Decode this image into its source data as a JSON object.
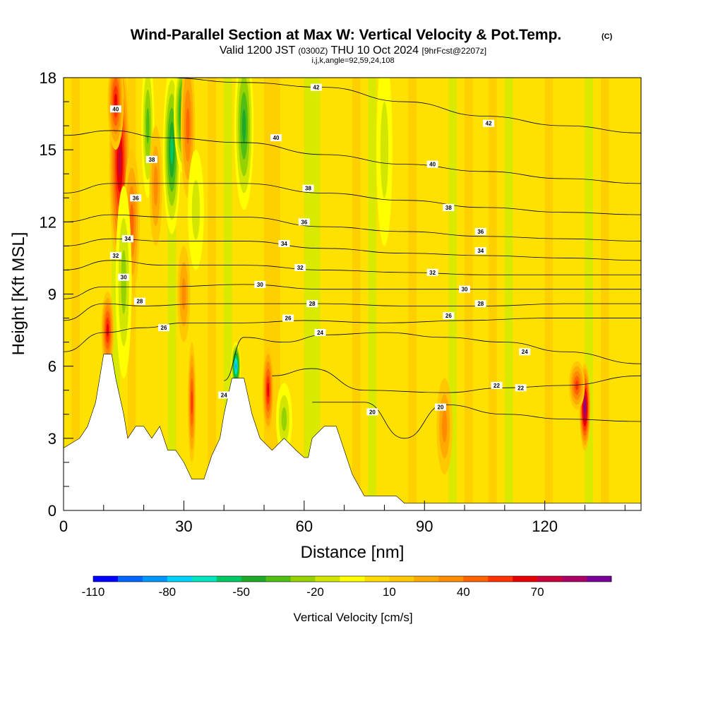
{
  "chart_data": {
    "type": "heatmap",
    "title": "Wind-Parallel Section at Max W: Vertical Velocity & Pot.Temp.",
    "title_mark": "(C)",
    "subtitle": {
      "main_a": "Valid 1200 JST",
      "utc": "(0300Z)",
      "main_b": "THU 10 Oct 2024",
      "fcst": "[9hrFcst@2207z]"
    },
    "index_line": "i,j,k,angle=92,59,24,108",
    "xlabel": "Distance [nm]",
    "ylabel": "Height [Kft MSL]",
    "xlim": [
      0,
      144
    ],
    "ylim": [
      0,
      18
    ],
    "x_ticks": [
      "0",
      "30",
      "60",
      "90",
      "120"
    ],
    "x_tick_values": [
      0,
      30,
      60,
      90,
      120
    ],
    "y_ticks": [
      "0",
      "3",
      "6",
      "9",
      "12",
      "15",
      "18"
    ],
    "y_tick_values": [
      0,
      3,
      6,
      9,
      12,
      15,
      18
    ],
    "grid": false,
    "colorbar": {
      "label": "Vertical Velocity [cm/s]",
      "range": [
        -110,
        100
      ],
      "step": 10,
      "tick_labels": [
        "-110",
        "-80",
        "-50",
        "-20",
        "10",
        "40",
        "70"
      ],
      "tick_values": [
        -110,
        -80,
        -50,
        -20,
        10,
        40,
        70
      ],
      "colors": [
        "#0000ff",
        "#0064ff",
        "#0096ff",
        "#00d2ff",
        "#00e6be",
        "#00c864",
        "#1eaa28",
        "#50be14",
        "#96d200",
        "#d2e600",
        "#ffff00",
        "#ffdc00",
        "#ffc800",
        "#ffaa00",
        "#ff8c00",
        "#ff6400",
        "#ff3200",
        "#e60000",
        "#c8003c",
        "#aa0064",
        "#780096"
      ]
    },
    "terrain": [
      [
        0,
        2.6
      ],
      [
        4,
        3.0
      ],
      [
        6,
        3.5
      ],
      [
        8,
        4.5
      ],
      [
        9,
        5.5
      ],
      [
        10,
        6.5
      ],
      [
        12,
        6.5
      ],
      [
        13,
        5.5
      ],
      [
        15,
        4.0
      ],
      [
        16,
        3.0
      ],
      [
        18,
        3.5
      ],
      [
        20,
        3.5
      ],
      [
        22,
        3.0
      ],
      [
        24,
        3.5
      ],
      [
        26,
        2.5
      ],
      [
        28,
        2.5
      ],
      [
        30,
        2.0
      ],
      [
        32,
        1.3
      ],
      [
        35,
        1.3
      ],
      [
        37,
        2.3
      ],
      [
        39,
        3.0
      ],
      [
        40,
        4.0
      ],
      [
        42,
        5.5
      ],
      [
        45,
        5.5
      ],
      [
        47,
        4.0
      ],
      [
        49,
        3.0
      ],
      [
        52,
        2.5
      ],
      [
        55,
        3.0
      ],
      [
        58,
        2.5
      ],
      [
        60,
        2.2
      ],
      [
        61,
        2.2
      ],
      [
        62,
        3.0
      ],
      [
        65,
        3.5
      ],
      [
        68,
        3.5
      ],
      [
        70,
        2.5
      ],
      [
        72,
        1.5
      ],
      [
        75,
        0.6
      ],
      [
        83,
        0.6
      ],
      [
        85,
        0.3
      ],
      [
        144,
        0.3
      ]
    ],
    "theta_contours": [
      {
        "level": 20,
        "label": "20",
        "points": [
          [
            62,
            4.5
          ],
          [
            75,
            4.5
          ],
          [
            85,
            3.0
          ],
          [
            95,
            4.4
          ],
          [
            110,
            4.0
          ],
          [
            125,
            3.8
          ],
          [
            144,
            3.7
          ]
        ],
        "label_pos": [
          77,
          4.1
        ]
      },
      {
        "level": 22,
        "label": "22",
        "points": [
          [
            52,
            5.6
          ],
          [
            62,
            5.9
          ],
          [
            75,
            5.0
          ],
          [
            95,
            4.9
          ],
          [
            110,
            5.1
          ],
          [
            125,
            5.2
          ],
          [
            144,
            5.6
          ]
        ],
        "label_pos": [
          108,
          5.2
        ]
      },
      {
        "level": 24,
        "label": "24",
        "points": [
          [
            40,
            5.4
          ],
          [
            45,
            7.2
          ],
          [
            55,
            7.0
          ],
          [
            65,
            7.3
          ],
          [
            80,
            7.4
          ],
          [
            95,
            7.2
          ],
          [
            110,
            7.0
          ],
          [
            125,
            6.6
          ],
          [
            144,
            6.1
          ]
        ],
        "label_pos": [
          64,
          7.4
        ]
      },
      {
        "level": 26,
        "label": "26",
        "points": [
          [
            0,
            6.6
          ],
          [
            10,
            7.4
          ],
          [
            20,
            7.6
          ],
          [
            30,
            7.8
          ],
          [
            45,
            7.8
          ],
          [
            60,
            7.9
          ],
          [
            80,
            7.8
          ],
          [
            100,
            7.9
          ],
          [
            120,
            8.0
          ],
          [
            144,
            8.0
          ]
        ],
        "label_pos": [
          56,
          8.0
        ]
      },
      {
        "level": 28,
        "label": "28",
        "points": [
          [
            0,
            7.9
          ],
          [
            10,
            8.6
          ],
          [
            20,
            8.5
          ],
          [
            35,
            8.6
          ],
          [
            50,
            8.6
          ],
          [
            65,
            8.6
          ],
          [
            85,
            8.5
          ],
          [
            105,
            8.5
          ],
          [
            125,
            8.6
          ],
          [
            144,
            8.6
          ]
        ],
        "label_pos": [
          62,
          8.6
        ]
      },
      {
        "level": 30,
        "label": "30",
        "points": [
          [
            0,
            8.8
          ],
          [
            10,
            9.3
          ],
          [
            25,
            9.3
          ],
          [
            45,
            9.4
          ],
          [
            65,
            9.2
          ],
          [
            85,
            9.2
          ],
          [
            105,
            9.2
          ],
          [
            125,
            9.2
          ],
          [
            144,
            9.2
          ]
        ],
        "label_pos": [
          49,
          9.4
        ]
      },
      {
        "level": 32,
        "label": "32",
        "points": [
          [
            0,
            10.0
          ],
          [
            12,
            10.4
          ],
          [
            25,
            10.2
          ],
          [
            45,
            10.2
          ],
          [
            65,
            10.0
          ],
          [
            85,
            9.9
          ],
          [
            105,
            9.8
          ],
          [
            125,
            9.8
          ],
          [
            144,
            9.8
          ]
        ],
        "label_pos": [
          59,
          10.1
        ]
      },
      {
        "level": 34,
        "label": "34",
        "points": [
          [
            0,
            11.0
          ],
          [
            12,
            11.3
          ],
          [
            25,
            11.2
          ],
          [
            45,
            11.2
          ],
          [
            65,
            10.9
          ],
          [
            85,
            10.7
          ],
          [
            105,
            10.6
          ],
          [
            125,
            10.5
          ],
          [
            144,
            10.4
          ]
        ],
        "label_pos": [
          55,
          11.1
        ]
      },
      {
        "level": 36,
        "label": "36",
        "points": [
          [
            0,
            12.0
          ],
          [
            12,
            12.3
          ],
          [
            25,
            12.2
          ],
          [
            45,
            12.2
          ],
          [
            65,
            11.8
          ],
          [
            85,
            11.6
          ],
          [
            105,
            11.4
          ],
          [
            125,
            11.3
          ],
          [
            144,
            11.2
          ]
        ],
        "label_pos": [
          60,
          12.0
        ]
      },
      {
        "level": 38,
        "label": "38",
        "points": [
          [
            0,
            13.2
          ],
          [
            12,
            13.6
          ],
          [
            25,
            13.6
          ],
          [
            45,
            13.6
          ],
          [
            65,
            13.2
          ],
          [
            85,
            12.9
          ],
          [
            105,
            12.6
          ],
          [
            125,
            12.4
          ],
          [
            144,
            12.3
          ]
        ],
        "label_pos": [
          61,
          13.4
        ]
      },
      {
        "level": 40,
        "label": "40",
        "points": [
          [
            0,
            15.6
          ],
          [
            12,
            15.8
          ],
          [
            25,
            15.5
          ],
          [
            45,
            15.3
          ],
          [
            65,
            14.8
          ],
          [
            85,
            14.4
          ],
          [
            105,
            14.1
          ],
          [
            125,
            13.8
          ],
          [
            144,
            13.6
          ]
        ],
        "label_pos": [
          53,
          15.5
        ]
      },
      {
        "level": 42,
        "label": "42",
        "points": [
          [
            25,
            18.0
          ],
          [
            45,
            17.8
          ],
          [
            65,
            17.6
          ],
          [
            85,
            17.0
          ],
          [
            105,
            16.4
          ],
          [
            125,
            16.0
          ],
          [
            144,
            15.7
          ]
        ],
        "label_pos": [
          63,
          17.6
        ]
      }
    ],
    "annotations": [
      "40",
      "38",
      "36",
      "34",
      "32",
      "30",
      "28",
      "26",
      "24",
      "42",
      "40",
      "38",
      "36",
      "34",
      "32",
      "30",
      "28",
      "26",
      "24",
      "22",
      "20"
    ],
    "annotation_positions": [
      [
        13,
        16.7
      ],
      [
        22,
        14.6
      ],
      [
        18,
        13.0
      ],
      [
        16,
        11.3
      ],
      [
        13,
        10.6
      ],
      [
        15,
        9.7
      ],
      [
        19,
        8.7
      ],
      [
        25,
        7.6
      ],
      [
        40,
        4.8
      ],
      [
        106,
        16.1
      ],
      [
        92,
        14.4
      ],
      [
        96,
        12.6
      ],
      [
        104,
        11.6
      ],
      [
        104,
        10.8
      ],
      [
        92,
        9.9
      ],
      [
        100,
        9.2
      ],
      [
        104,
        8.6
      ],
      [
        96,
        8.1
      ],
      [
        115,
        6.6
      ],
      [
        114,
        5.1
      ],
      [
        94,
        4.3
      ]
    ],
    "velocity_features": [
      {
        "x": 14,
        "y": 14.5,
        "w": 2.6,
        "h": 4.5,
        "value": 65
      },
      {
        "x": 13,
        "y": 17.0,
        "w": 2.0,
        "h": 2.0,
        "value": 55
      },
      {
        "x": 11,
        "y": 7.5,
        "w": 1.6,
        "h": 1.6,
        "value": 60
      },
      {
        "x": 17,
        "y": 12.0,
        "w": 2.0,
        "h": 3.0,
        "value": 40
      },
      {
        "x": 15,
        "y": 9.5,
        "w": 2.0,
        "h": 4.0,
        "value": -25
      },
      {
        "x": 21,
        "y": 16.0,
        "w": 1.6,
        "h": 3.0,
        "value": -40
      },
      {
        "x": 23,
        "y": 13.5,
        "w": 1.6,
        "h": 2.5,
        "value": 30
      },
      {
        "x": 27,
        "y": 15.0,
        "w": 2.2,
        "h": 3.5,
        "value": -55
      },
      {
        "x": 30,
        "y": 16.5,
        "w": 2.5,
        "h": 2.5,
        "value": -70
      },
      {
        "x": 31,
        "y": 16.0,
        "w": 1.8,
        "h": 3.0,
        "value": 40
      },
      {
        "x": 30,
        "y": 9.0,
        "w": 1.6,
        "h": 2.0,
        "value": 30
      },
      {
        "x": 32,
        "y": 4.5,
        "w": 1.0,
        "h": 2.5,
        "value": 50
      },
      {
        "x": 33,
        "y": 12.5,
        "w": 2.0,
        "h": 2.5,
        "value": -20
      },
      {
        "x": 45,
        "y": 16.0,
        "w": 2.4,
        "h": 3.5,
        "value": -50
      },
      {
        "x": 43,
        "y": 6.0,
        "w": 1.2,
        "h": 1.0,
        "value": -85
      },
      {
        "x": 51,
        "y": 5.0,
        "w": 1.4,
        "h": 1.8,
        "value": 60
      },
      {
        "x": 55,
        "y": 3.8,
        "w": 2.0,
        "h": 1.5,
        "value": -30
      },
      {
        "x": 95,
        "y": 3.5,
        "w": 2.0,
        "h": 2.0,
        "value": 25
      },
      {
        "x": 130,
        "y": 4.3,
        "w": 1.4,
        "h": 1.8,
        "value": 85
      },
      {
        "x": 128,
        "y": 5.2,
        "w": 2.0,
        "h": 1.0,
        "value": 45
      },
      {
        "x": 80,
        "y": 15.0,
        "w": 2.0,
        "h": 4.0,
        "value": -15
      }
    ]
  }
}
